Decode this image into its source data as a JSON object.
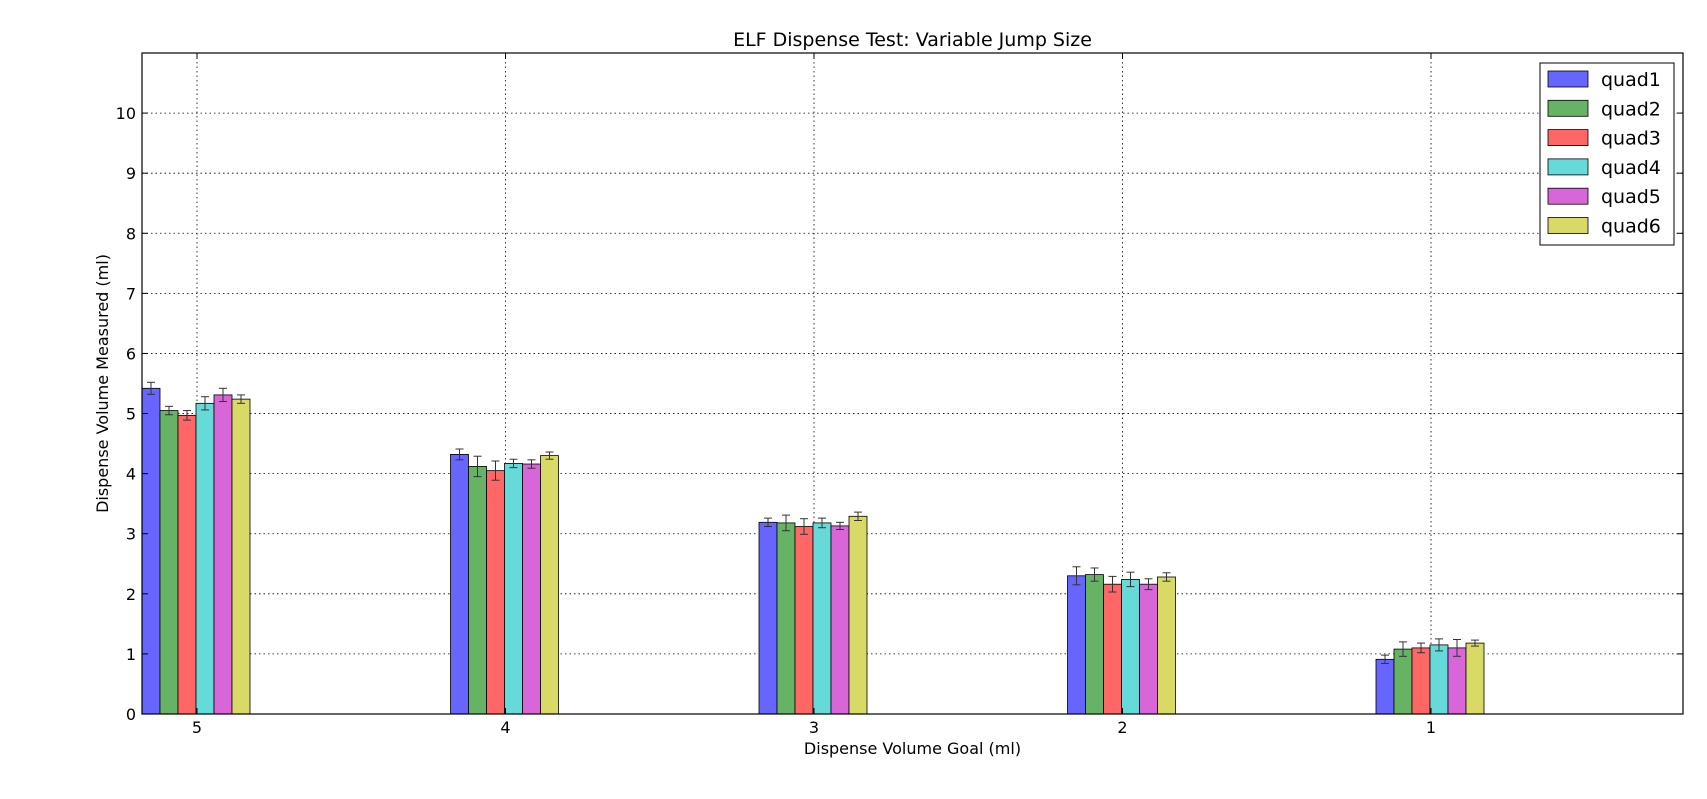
{
  "chart_data": {
    "type": "bar",
    "title": "ELF Dispense Test: Variable Jump Size",
    "xlabel": "Dispense Volume Goal (ml)",
    "ylabel": "Dispense Volume Measured (ml)",
    "categories": [
      "5",
      "4",
      "3",
      "2",
      "1"
    ],
    "ylim": [
      0,
      11
    ],
    "yticks": [
      "0",
      "1",
      "2",
      "3",
      "4",
      "5",
      "6",
      "7",
      "8",
      "9",
      "10"
    ],
    "grid": true,
    "legend_position": "top-right",
    "error_bars": true,
    "series": [
      {
        "name": "quad1",
        "color": "#6666ff",
        "values": [
          5.42,
          4.32,
          3.19,
          2.3,
          0.91
        ],
        "errors": [
          0.1,
          0.09,
          0.07,
          0.15,
          0.07
        ]
      },
      {
        "name": "quad2",
        "color": "#66b366",
        "values": [
          5.05,
          4.12,
          3.18,
          2.32,
          1.08
        ],
        "errors": [
          0.07,
          0.17,
          0.13,
          0.11,
          0.12
        ]
      },
      {
        "name": "quad3",
        "color": "#ff6666",
        "values": [
          4.97,
          4.05,
          3.12,
          2.16,
          1.1
        ],
        "errors": [
          0.08,
          0.16,
          0.13,
          0.13,
          0.08
        ]
      },
      {
        "name": "quad4",
        "color": "#66d9d9",
        "values": [
          5.17,
          4.17,
          3.18,
          2.24,
          1.15
        ],
        "errors": [
          0.11,
          0.07,
          0.08,
          0.12,
          0.1
        ]
      },
      {
        "name": "quad5",
        "color": "#d966d9",
        "values": [
          5.31,
          4.16,
          3.13,
          2.16,
          1.1
        ],
        "errors": [
          0.11,
          0.07,
          0.06,
          0.09,
          0.14
        ]
      },
      {
        "name": "quad6",
        "color": "#d9d966",
        "values": [
          5.24,
          4.3,
          3.29,
          2.28,
          1.18
        ],
        "errors": [
          0.07,
          0.06,
          0.07,
          0.07,
          0.05
        ]
      }
    ]
  }
}
